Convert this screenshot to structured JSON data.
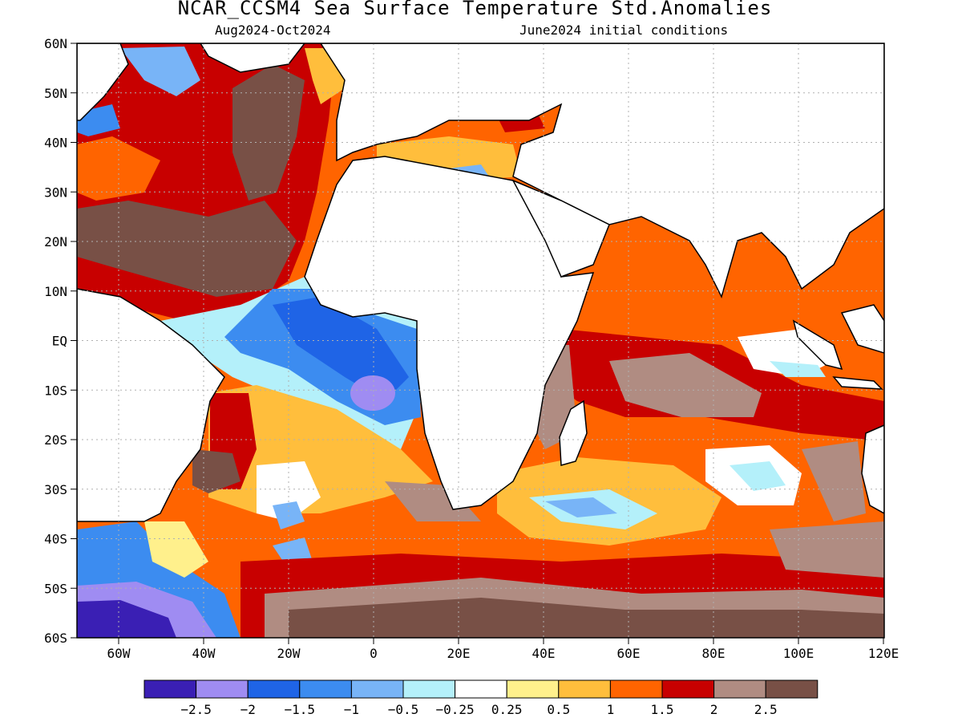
{
  "title": "NCAR_CCSM4 Sea Surface Temperature Std.Anomalies",
  "subtitle_left": "Aug2024-Oct2024",
  "subtitle_right": "June2024 initial conditions",
  "lat_labels": [
    "60N",
    "50N",
    "40N",
    "30N",
    "20N",
    "10N",
    "EQ",
    "10S",
    "20S",
    "30S",
    "40S",
    "50S",
    "60S"
  ],
  "lon_labels": [
    "60W",
    "40W",
    "20W",
    "0",
    "20E",
    "40E",
    "60E",
    "80E",
    "100E",
    "120E"
  ],
  "colorbar": {
    "colors": [
      "#3a1fb4",
      "#9f8cf2",
      "#1f64e6",
      "#3c8cf0",
      "#78b4f7",
      "#b4f0fa",
      "#ffffff",
      "#fff08c",
      "#ffbe3c",
      "#ff6400",
      "#c80000",
      "#b08c82",
      "#785046"
    ],
    "labels": [
      "-2.5",
      "-2",
      "-1.5",
      "-1",
      "-0.5",
      "-0.25",
      "0.25",
      "0.5",
      "1",
      "1.5",
      "2",
      "2.5"
    ]
  },
  "palette": {
    "deep_brown": "#785046",
    "light_brown": "#b08c82",
    "dark_red": "#c80000",
    "orange": "#ff6400",
    "light_orange": "#ffbe3c",
    "yellow": "#fff08c",
    "white": "#ffffff",
    "cyan": "#b4f0fa",
    "light_blue": "#78b4f7",
    "blue": "#3c8cf0",
    "mid_blue": "#1f64e6",
    "lavender": "#9f8cf2",
    "indigo": "#3a1fb4",
    "land": "#ffffff"
  }
}
